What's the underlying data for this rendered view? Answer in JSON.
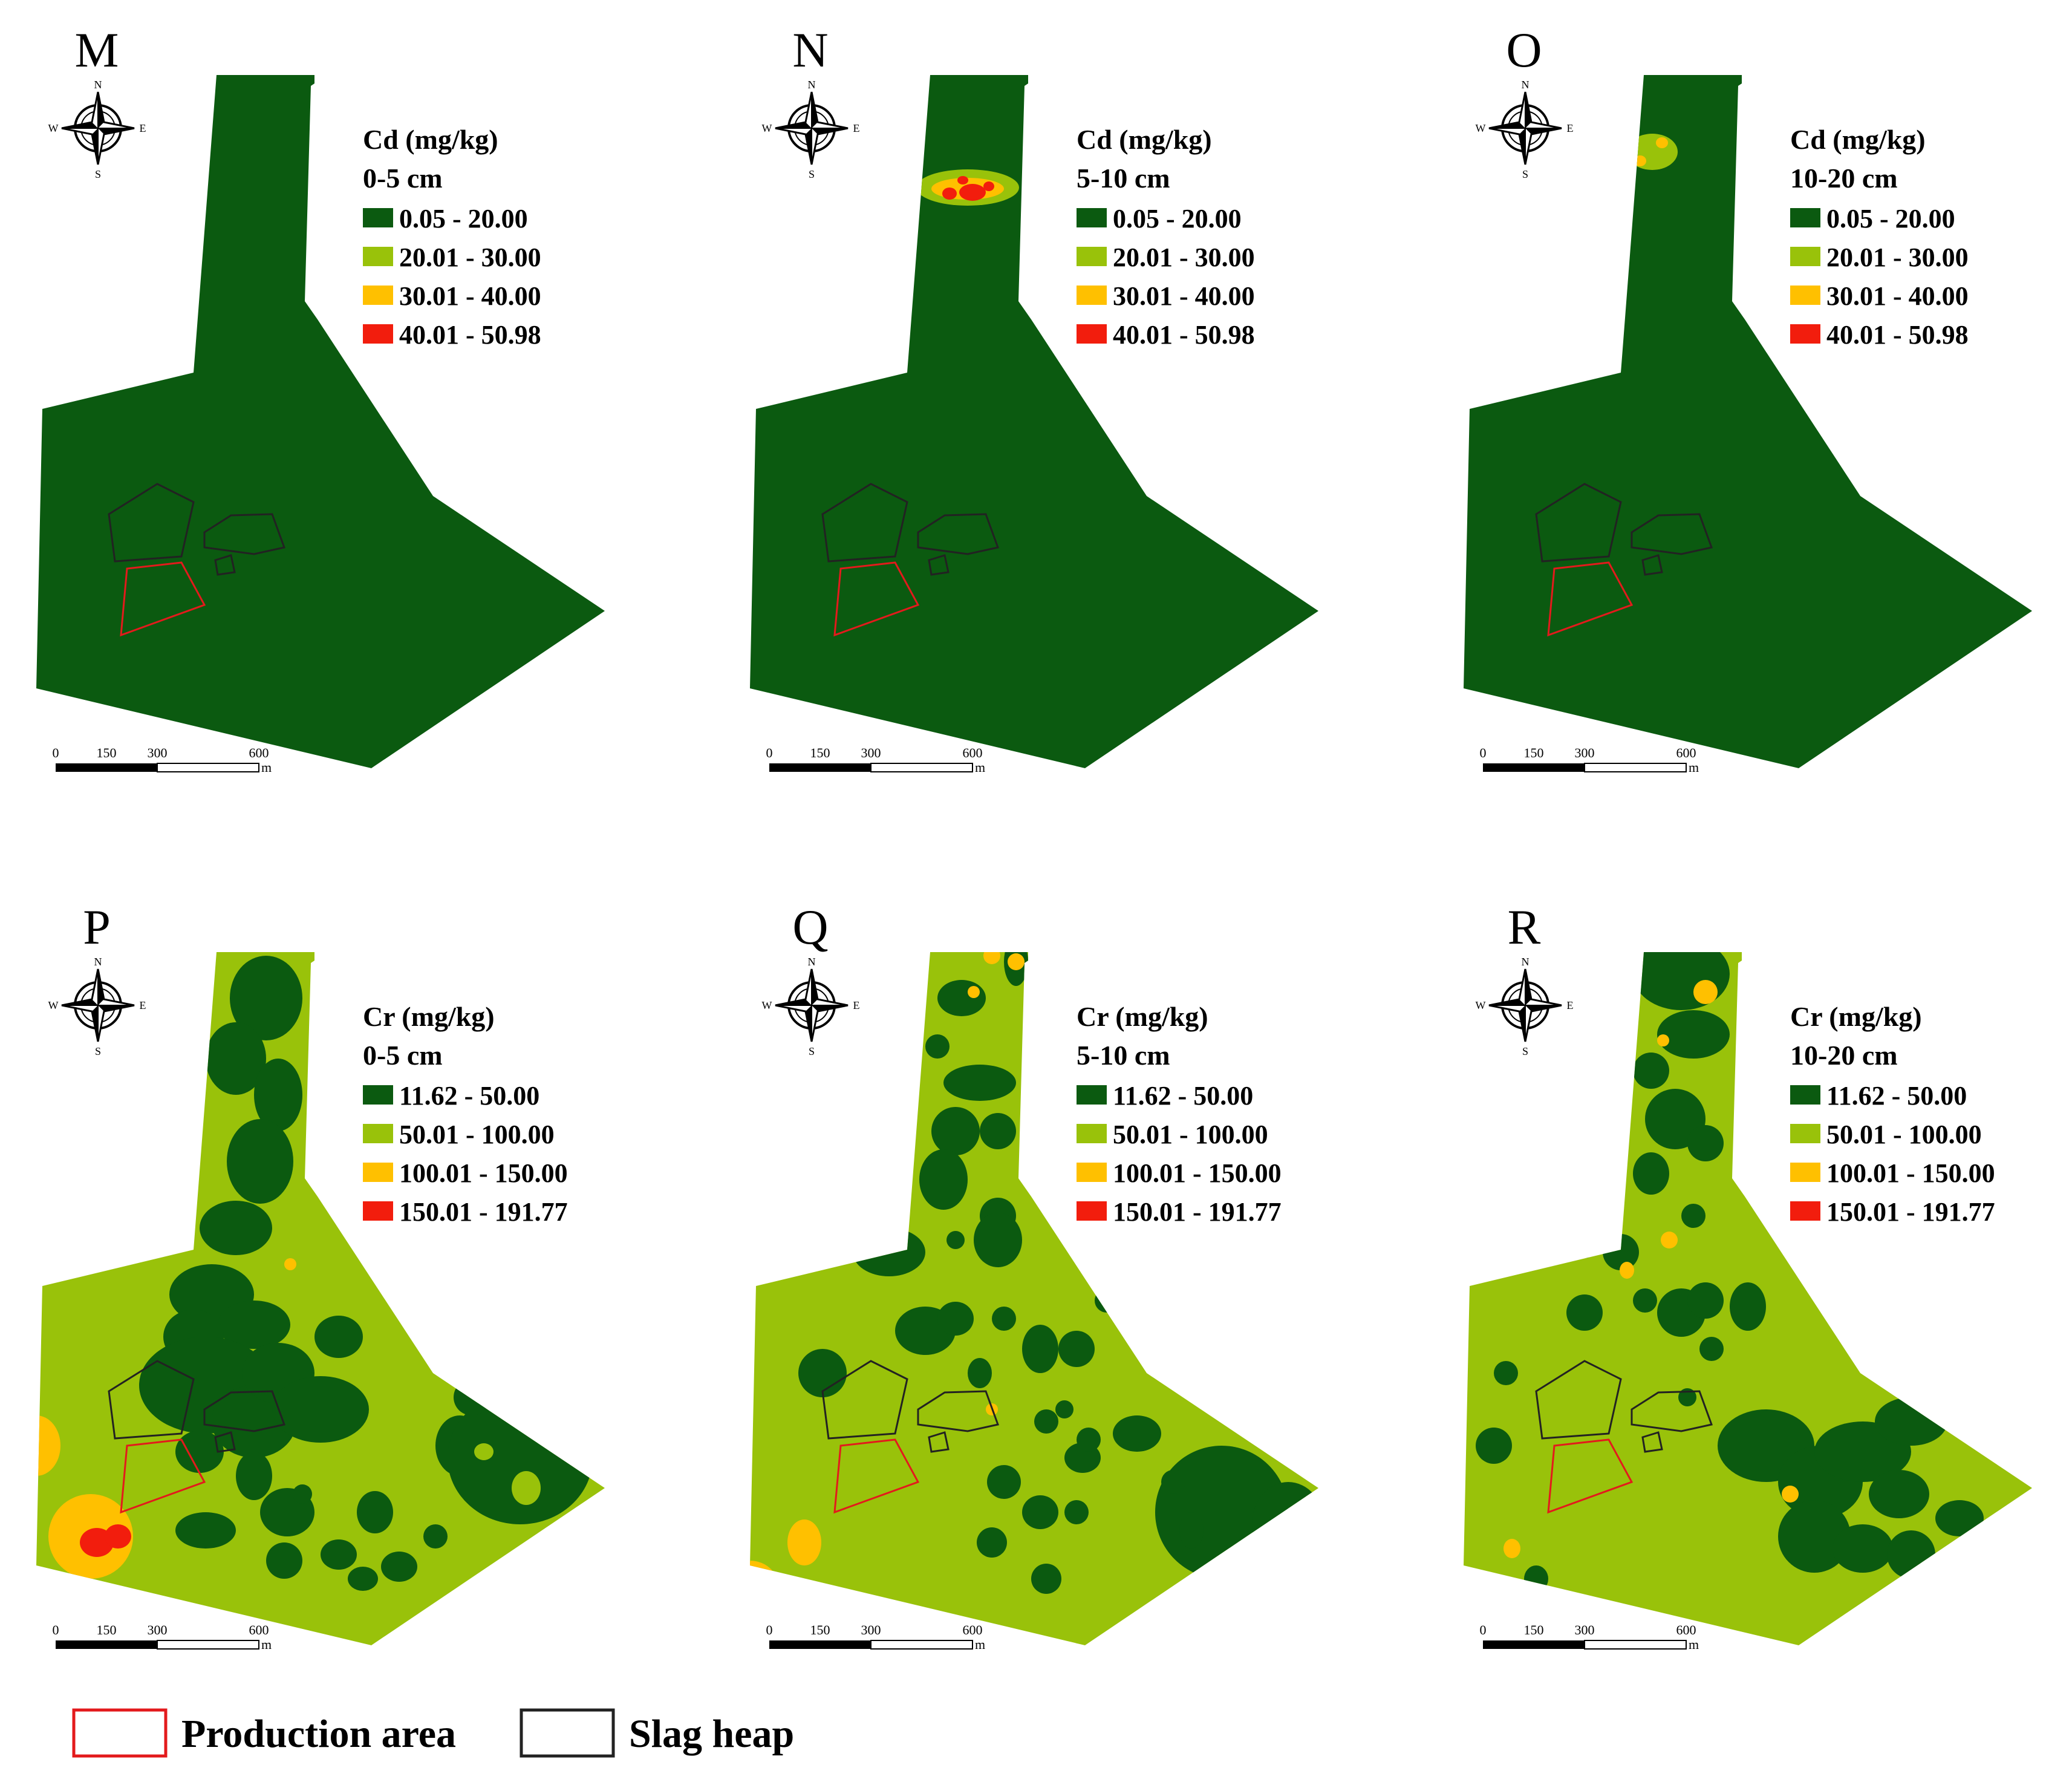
{
  "colors": {
    "dark_green": "#0b5a10",
    "light_green": "#99c20a",
    "orange": "#ffc000",
    "red": "#f21d0d",
    "production_area": "#e31a1c",
    "slag_heap": "#222222"
  },
  "compass": {
    "n": "N",
    "s": "S",
    "e": "E",
    "w": "W"
  },
  "scalebar": {
    "labels": [
      "0",
      "150",
      "300",
      "600"
    ],
    "unit": "m"
  },
  "panels": [
    {
      "letter": "M",
      "element": "Cd (mg/kg)",
      "depth": "0-5 cm",
      "classes": "cd",
      "pattern": "cd_0_5"
    },
    {
      "letter": "N",
      "element": "Cd (mg/kg)",
      "depth": "5-10 cm",
      "classes": "cd",
      "pattern": "cd_5_10"
    },
    {
      "letter": "O",
      "element": "Cd (mg/kg)",
      "depth": "10-20 cm",
      "classes": "cd",
      "pattern": "cd_10_20"
    },
    {
      "letter": "P",
      "element": "Cr (mg/kg)",
      "depth": "0-5 cm",
      "classes": "cr",
      "pattern": "cr_0_5"
    },
    {
      "letter": "Q",
      "element": "Cr (mg/kg)",
      "depth": "5-10 cm",
      "classes": "cr",
      "pattern": "cr_5_10"
    },
    {
      "letter": "R",
      "element": "Cr (mg/kg)",
      "depth": "10-20 cm",
      "classes": "cr",
      "pattern": "cr_10_20"
    }
  ],
  "legend_classes": {
    "cd": [
      {
        "label": "0.05 - 20.00",
        "color": "dark_green"
      },
      {
        "label": "20.01 - 30.00",
        "color": "light_green"
      },
      {
        "label": "30.01 - 40.00",
        "color": "orange"
      },
      {
        "label": "40.01 - 50.98",
        "color": "red"
      }
    ],
    "cr": [
      {
        "label": "11.62 - 50.00",
        "color": "dark_green"
      },
      {
        "label": "50.01 - 100.00",
        "color": "light_green"
      },
      {
        "label": "100.01 - 150.00",
        "color": "orange"
      },
      {
        "label": "150.01 - 191.77",
        "color": "red"
      }
    ]
  },
  "key": {
    "production_area": "Production area",
    "slag_heap": "Slag heap"
  }
}
